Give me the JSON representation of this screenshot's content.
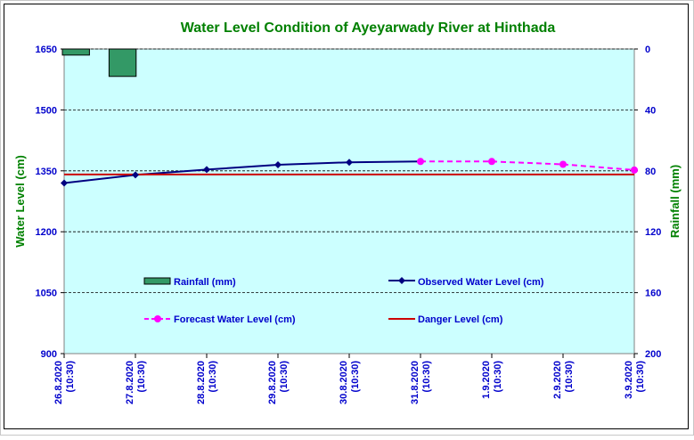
{
  "chart_data": {
    "type": "line",
    "title": "Water Level Condition of Ayeyarwady  River at Hinthada",
    "ylabel": "Water Level (cm)",
    "y2label": "Rainfall (mm)",
    "ylim": [
      900,
      1650
    ],
    "yticks": [
      900,
      1050,
      1200,
      1350,
      1500,
      1650
    ],
    "y2lim": [
      200,
      0
    ],
    "y2ticks": [
      0,
      40,
      80,
      120,
      160,
      200
    ],
    "y2_inverted": true,
    "grid": true,
    "categories": [
      "26.8.2020 (10:30)",
      "27.8.2020 (10:30)",
      "28.8.2020 (10:30)",
      "29.8.2020 (10:30)",
      "30.8.2020 (10:30)",
      "31.8.2020 (10:30)",
      "1.9.2020 (10:30)",
      "2.9.2020 (10:30)",
      "3.9.2020 (10:30)"
    ],
    "series": [
      {
        "name": "Rainfall (mm)",
        "kind": "bar",
        "axis": "right",
        "color": "#339966",
        "values": [
          4,
          18,
          0,
          0,
          0,
          0,
          0,
          0,
          0
        ]
      },
      {
        "name": "Observed Water Level (cm)",
        "kind": "line",
        "axis": "left",
        "color": "#000080",
        "marker": "diamond",
        "values": [
          1320,
          1340,
          1353,
          1365,
          1371,
          1373,
          null,
          null,
          null
        ]
      },
      {
        "name": "Forecast Water Level (cm)",
        "kind": "line",
        "axis": "left",
        "color": "#ff00ff",
        "dashed": true,
        "marker": "circle",
        "values": [
          null,
          null,
          null,
          null,
          null,
          1373,
          1373,
          1366,
          1352
        ]
      },
      {
        "name": "Danger Level (cm)",
        "kind": "line",
        "axis": "left",
        "color": "#cc0000",
        "values": [
          1341,
          1341,
          1341,
          1341,
          1341,
          1341,
          1341,
          1341,
          1341
        ]
      }
    ],
    "legend_placement": "inside-bottom",
    "colors": {
      "plot_background": "#ccffff",
      "title": "#008000",
      "axis_labels": "#008000",
      "tick_labels": "#0000cc",
      "legend_text": "#0000cc"
    }
  }
}
